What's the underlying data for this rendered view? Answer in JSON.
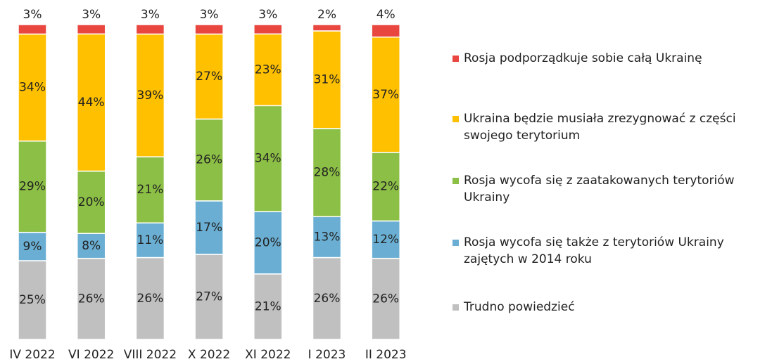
{
  "chart_data": {
    "type": "stacked_bar",
    "categories": [
      "IV 2022",
      "VI 2022",
      "VIII 2022",
      "X 2022",
      "XI 2022",
      "I 2023",
      "II 2023"
    ],
    "series": [
      {
        "name": "Rosja podporządkuje sobie całą Ukrainę",
        "color": "#e8463f",
        "values": [
          3,
          3,
          3,
          3,
          3,
          2,
          4
        ],
        "value_labels": [
          "3%",
          "3%",
          "3%",
          "3%",
          "3%",
          "2%",
          "4%"
        ]
      },
      {
        "name": "Ukraina będzie musiała zrezygnować z części swojego terytorium",
        "color": "#ffc000",
        "values": [
          34,
          44,
          39,
          27,
          23,
          31,
          37
        ],
        "value_labels": [
          "34%",
          "44%",
          "39%",
          "27%",
          "23%",
          "31%",
          "37%"
        ]
      },
      {
        "name": "Rosja wycofa się z zaatakowanych terytoriów Ukrainy",
        "color": "#8cbf45",
        "values": [
          29,
          20,
          21,
          26,
          34,
          28,
          22
        ],
        "value_labels": [
          "29%",
          "20%",
          "21%",
          "26%",
          "34%",
          "28%",
          "22%"
        ]
      },
      {
        "name": "Rosja wycofa się także z terytoriów Ukrainy zajętych w 2014 roku",
        "color": "#6aafd3",
        "values": [
          9,
          8,
          11,
          17,
          20,
          13,
          12
        ],
        "value_labels": [
          "9%",
          "8%",
          "11%",
          "17%",
          "20%",
          "13%",
          "12%"
        ]
      },
      {
        "name": "Trudno powiedzieć",
        "color": "#c0c0c0",
        "values": [
          25,
          26,
          26,
          27,
          21,
          26,
          26
        ],
        "value_labels": [
          "25%",
          "26%",
          "26%",
          "27%",
          "21%",
          "26%",
          "26%"
        ]
      }
    ],
    "legend": "right"
  }
}
